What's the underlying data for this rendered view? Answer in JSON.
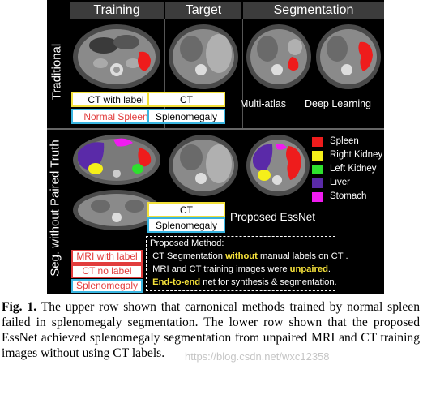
{
  "figure": {
    "columns": [
      "Training",
      "Target",
      "Segmentation"
    ],
    "rows": [
      "Traditional",
      "Seg. without Paired Truth"
    ],
    "top_row": {
      "train_labels": [
        "CT with label",
        "Normal Spleen"
      ],
      "target_labels": [
        "CT",
        "Splenomegaly"
      ],
      "methods": [
        "Multi-atlas",
        "Deep Learning"
      ]
    },
    "bottom_row": {
      "train_labels": [
        "MRI with label",
        "CT no label",
        "Splenomegaly"
      ],
      "target_labels": [
        "CT",
        "Splenomegaly"
      ],
      "result_label": "Proposed EssNet"
    },
    "legend": [
      {
        "label": "Spleen",
        "color": "#ee1c1c"
      },
      {
        "label": "Right Kidney",
        "color": "#f5ef1a"
      },
      {
        "label": "Left Kidney",
        "color": "#2ee02e"
      },
      {
        "label": "Liver",
        "color": "#5a2aa8"
      },
      {
        "label": "Stomach",
        "color": "#f01cf0"
      }
    ],
    "method_box": {
      "title": "Proposed Method:",
      "line1_pre": "CT Segmentation ",
      "line1_hl": "without",
      "line1_post": " manual labels on CT .",
      "line2_pre": "MRI and CT training images were ",
      "line2_hl": "unpaired",
      "line2_post": ".",
      "line3_hl": "End-to-end",
      "line3_post": " net for synthesis & segmentation."
    }
  },
  "caption": {
    "label": "Fig. 1.",
    "text": " The upper row shown that carnonical methods trained by normal spleen failed in splenomegaly segmentation. The lower row shown that the proposed EssNet achieved splenomegaly segmentation from unpaired MRI and CT training images without using CT labels."
  },
  "watermark": "https://blog.csdn.net/wxc12358"
}
